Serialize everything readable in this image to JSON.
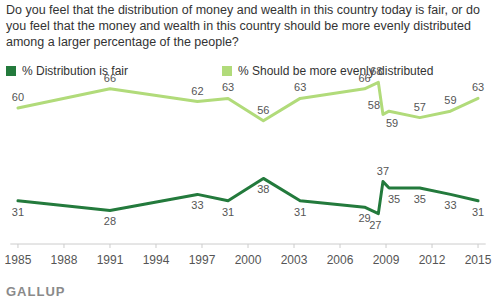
{
  "chart_data": {
    "type": "line",
    "title": "Do you feel that the distribution of money and wealth in this country today is fair, or do you feel that the money and wealth in this country should be more evenly distributed among a larger percentage of the people?",
    "source": "GALLUP",
    "x": [
      1985,
      1991,
      1996.7,
      1998.7,
      2001,
      2003.4,
      2007.6,
      2008.5,
      2008.8,
      2009.2,
      2011.2,
      2013.2,
      2015
    ],
    "series": [
      {
        "name": "% Distribution is fair",
        "color": "#237a3c",
        "values": [
          31,
          28,
          33,
          31,
          38,
          31,
          29,
          27,
          37,
          35,
          35,
          33,
          31
        ]
      },
      {
        "name": "% Should be more evenly distributed",
        "color": "#b1db7a",
        "values": [
          60,
          66,
          62,
          63,
          56,
          63,
          66,
          68,
          58,
          59,
          57,
          59,
          63
        ]
      }
    ],
    "xlim": [
      1984.5,
      2015.5
    ],
    "xticks": [
      1985,
      1988,
      1991,
      1994,
      1997,
      2000,
      2003,
      2006,
      2009,
      2012,
      2015
    ],
    "ylim": [
      20,
      75
    ],
    "grid": false,
    "legend": "top",
    "data_labels": true,
    "tick_labels": "x"
  }
}
